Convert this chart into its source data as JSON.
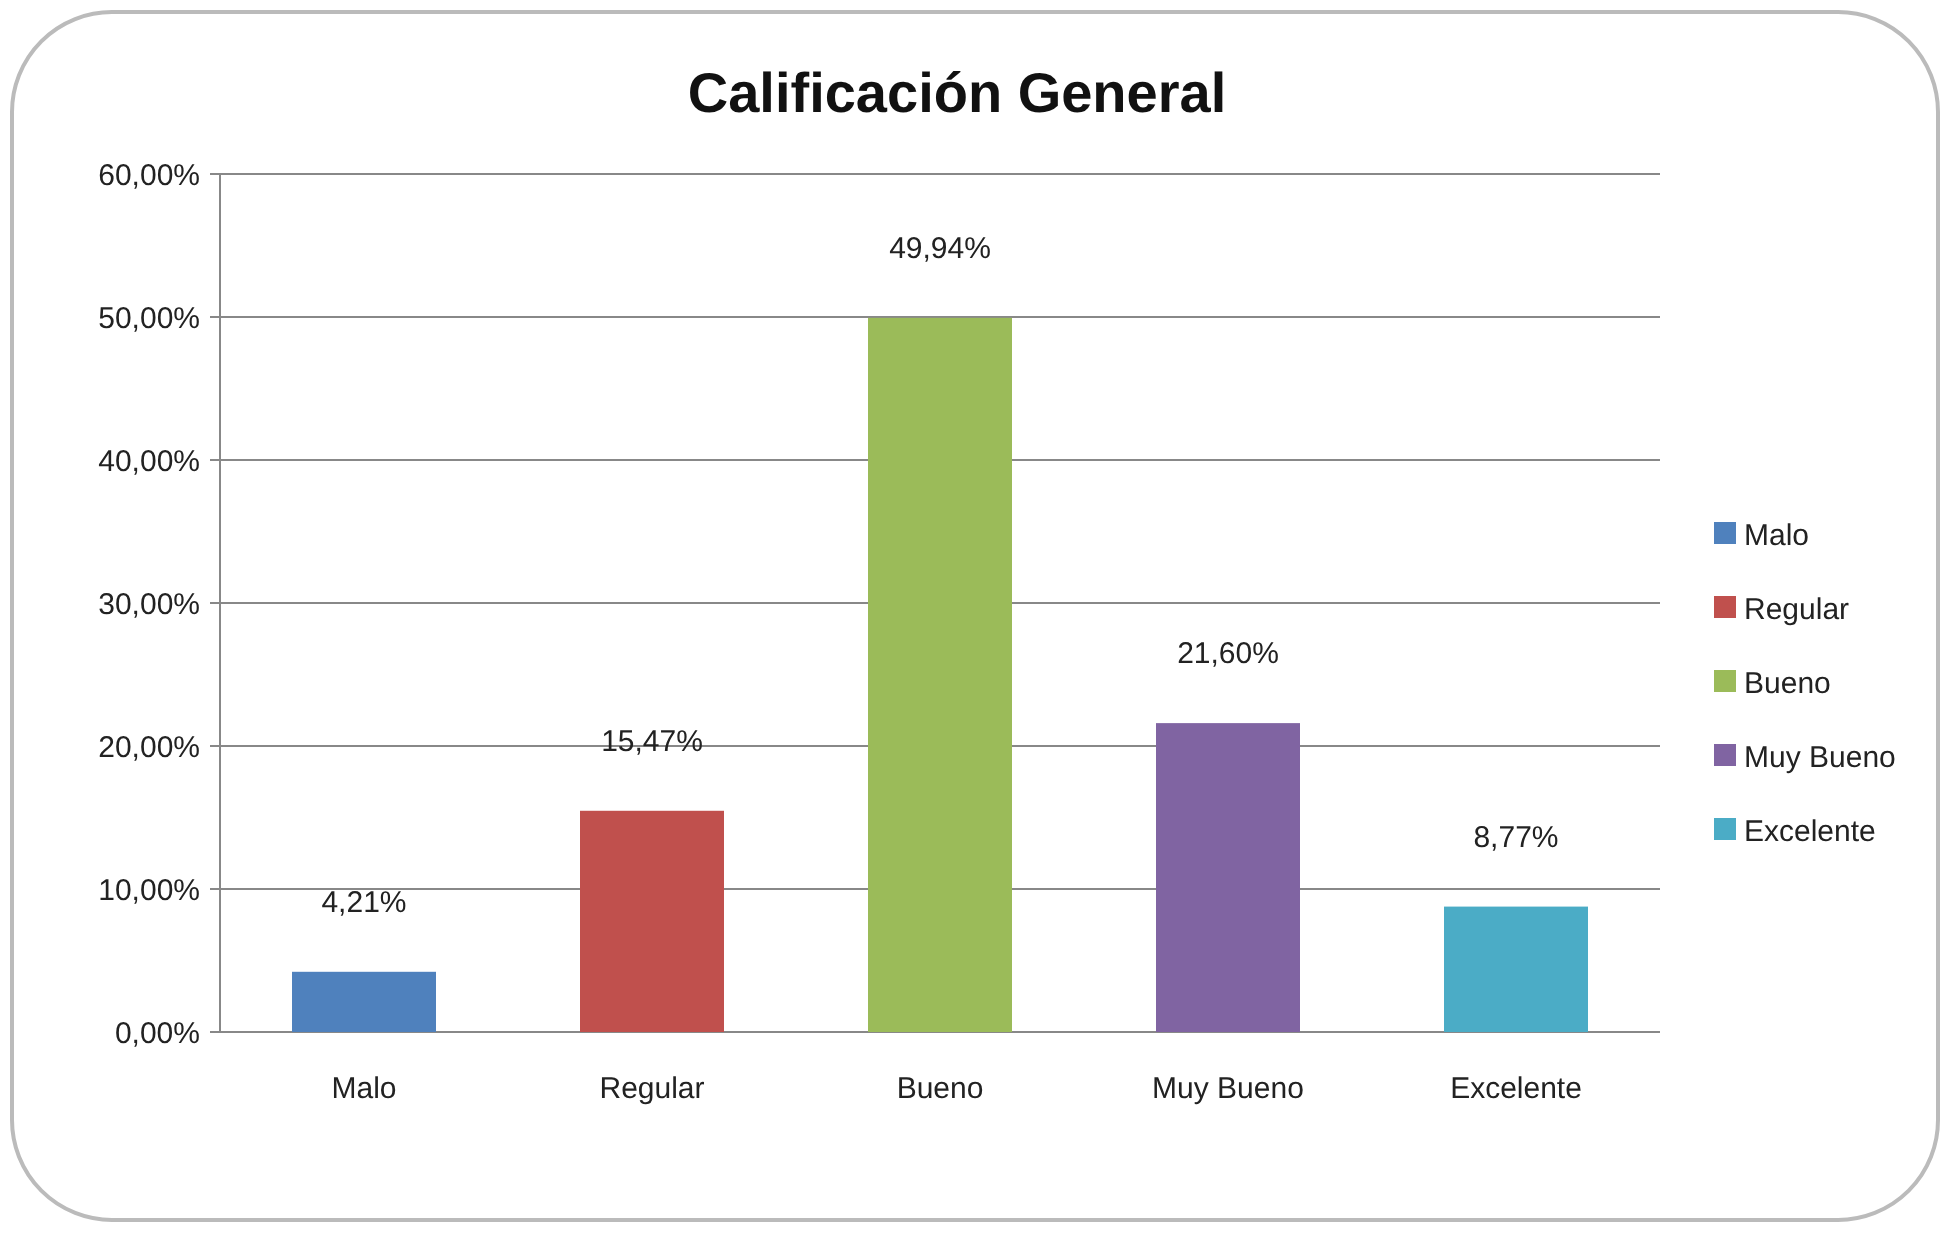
{
  "chart_data": {
    "type": "bar",
    "title": "Calificación General",
    "categories": [
      "Malo",
      "Regular",
      "Bueno",
      "Muy Bueno",
      "Excelente"
    ],
    "series": [
      {
        "name": "Malo",
        "color": "#4f81bd",
        "values": [
          4.21,
          null,
          null,
          null,
          null
        ],
        "value_labels": [
          "4,21%",
          null,
          null,
          null,
          null
        ]
      },
      {
        "name": "Regular",
        "color": "#c0504d",
        "values": [
          null,
          15.47,
          null,
          null,
          null
        ],
        "value_labels": [
          null,
          "15,47%",
          null,
          null,
          null
        ]
      },
      {
        "name": "Bueno",
        "color": "#9bbb59",
        "values": [
          null,
          null,
          49.94,
          null,
          null
        ],
        "value_labels": [
          null,
          null,
          "49,94%",
          null,
          null
        ]
      },
      {
        "name": "Muy Bueno",
        "color": "#8064a2",
        "values": [
          null,
          null,
          null,
          21.6,
          null
        ],
        "value_labels": [
          null,
          null,
          null,
          "21,60%",
          null
        ]
      },
      {
        "name": "Excelente",
        "color": "#4bacc6",
        "values": [
          null,
          null,
          null,
          null,
          8.77
        ],
        "value_labels": [
          null,
          null,
          null,
          null,
          "8,77%"
        ]
      }
    ],
    "ylim": [
      0,
      60
    ],
    "yticks": [
      {
        "value": 0,
        "label": "0,00%"
      },
      {
        "value": 10,
        "label": "10,00%"
      },
      {
        "value": 20,
        "label": "20,00%"
      },
      {
        "value": 30,
        "label": "30,00%"
      },
      {
        "value": 40,
        "label": "40,00%"
      },
      {
        "value": 50,
        "label": "50,00%"
      },
      {
        "value": 60,
        "label": "60,00%"
      }
    ],
    "grid": "y",
    "legend": "right"
  }
}
